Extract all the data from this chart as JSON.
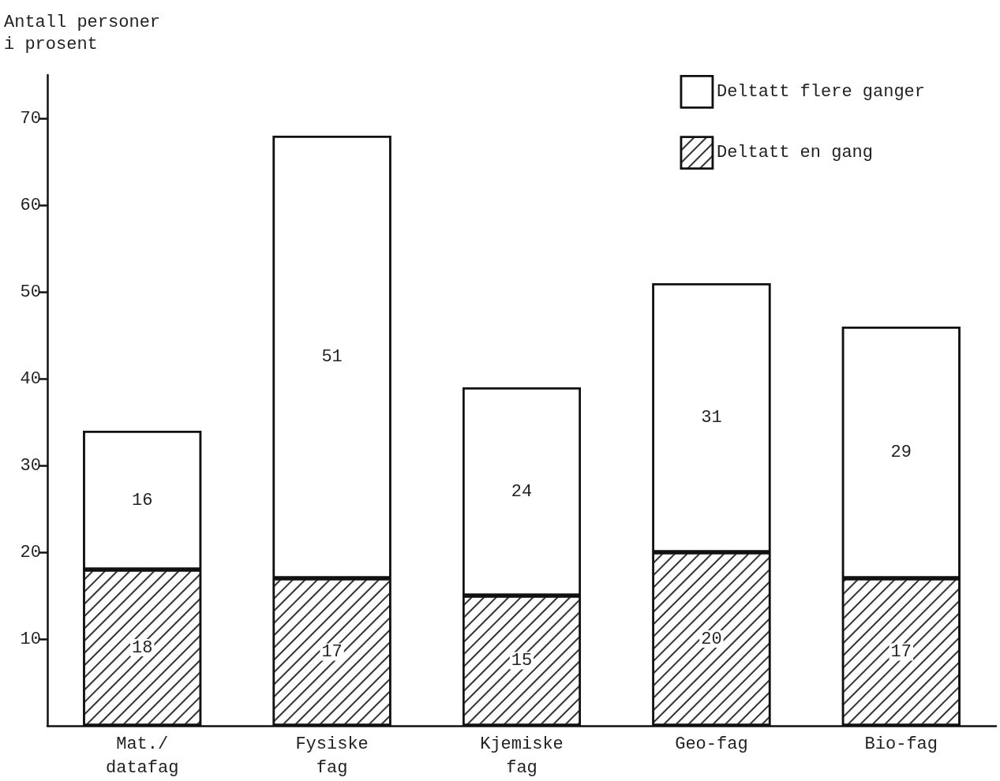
{
  "chart_data": {
    "type": "bar",
    "stacked": true,
    "ylabel": "Antall personer\ni prosent",
    "categories": [
      "Mat./\ndatafag",
      "Fysiske\nfag",
      "Kjemiske\nfag",
      "Geo-fag",
      "Bio-fag"
    ],
    "series": [
      {
        "name": "Deltatt en gang",
        "color": "#ffffff",
        "values": [
          18,
          17,
          15,
          20,
          17
        ]
      },
      {
        "name": "Deltatt flere ganger",
        "color": "#ffffff",
        "values": [
          16,
          51,
          24,
          31,
          29
        ]
      }
    ],
    "ylim": [
      0,
      75
    ],
    "yticks": [
      10,
      20,
      30,
      40,
      50,
      60,
      70
    ],
    "data_labels": true,
    "grid": false,
    "legend": "top right"
  }
}
